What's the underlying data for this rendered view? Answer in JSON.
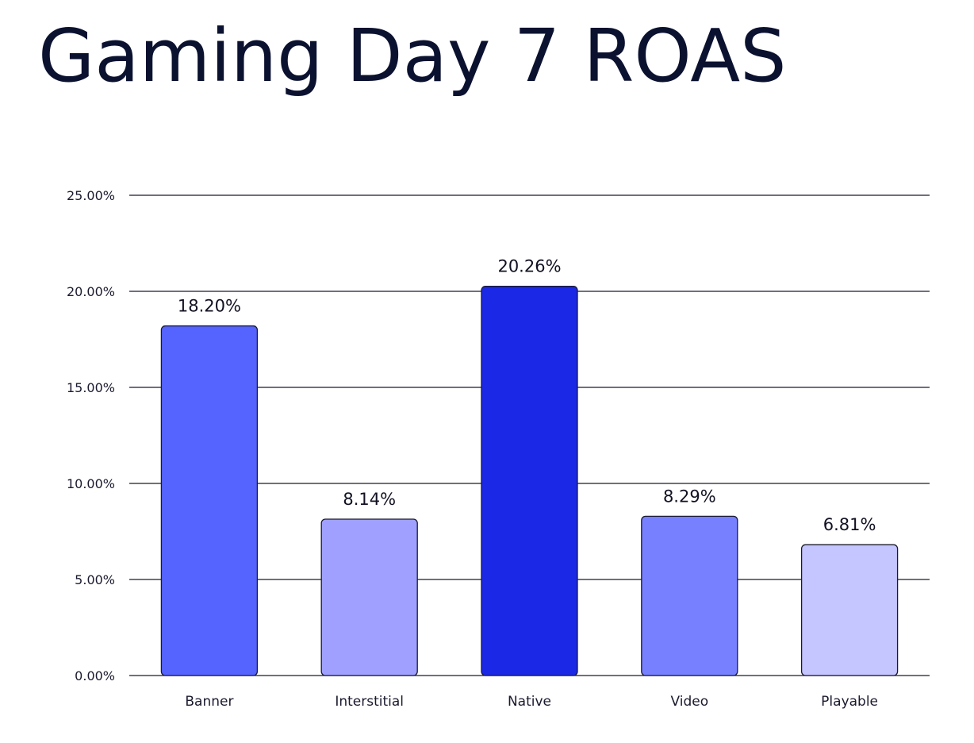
{
  "chart_data": {
    "type": "bar",
    "title": "Gaming Day 7 ROAS",
    "categories": [
      "Banner",
      "Interstitial",
      "Native",
      "Video",
      "Playable"
    ],
    "values": [
      18.2,
      8.14,
      20.26,
      8.29,
      6.81
    ],
    "data_labels": [
      "18.20%",
      "8.14%",
      "20.26%",
      "8.29%",
      "6.81%"
    ],
    "y_ticks": [
      0,
      5,
      10,
      15,
      20,
      25
    ],
    "y_tick_labels": [
      "0.00%",
      "5.00%",
      "10.00%",
      "15.00%",
      "20.00%",
      "25.00%"
    ],
    "ylim": [
      0,
      25
    ],
    "xlabel": "",
    "ylabel": "",
    "grid": true,
    "legend": "none",
    "bar_colors": [
      "#5563ff",
      "#9fa0ff",
      "#1b28e6",
      "#7780ff",
      "#c5c5ff"
    ],
    "bar_outline_color": "#1a1a2e",
    "grid_color": "#1a1a2e",
    "title_color": "#0b1230"
  }
}
